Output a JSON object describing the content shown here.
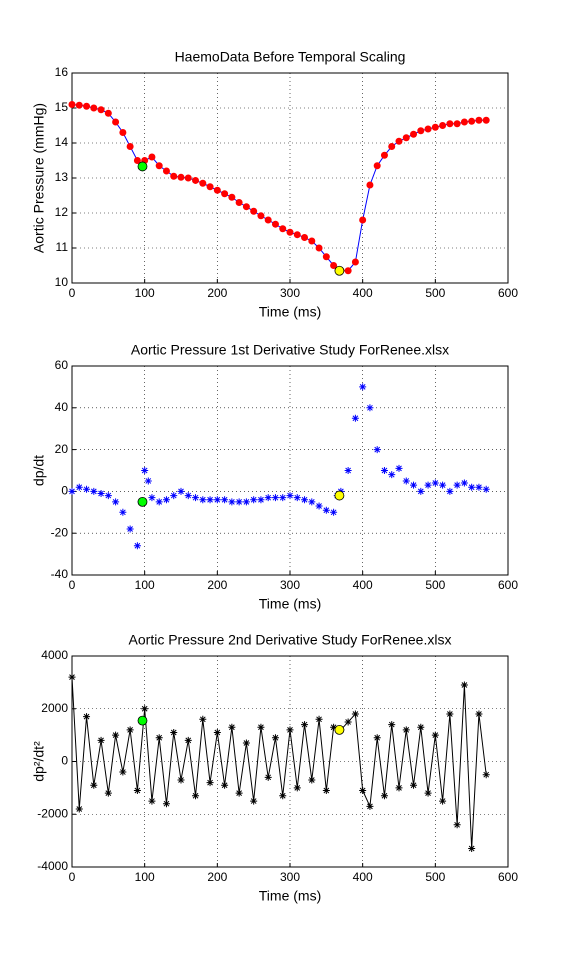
{
  "chart_data": [
    {
      "type": "line",
      "title": "HaemoData Before Temporal Scaling",
      "xlabel": "Time (ms)",
      "ylabel": "Aortic Pressure (mmHg)",
      "xlim": [
        0,
        600
      ],
      "xticks": [
        0,
        100,
        200,
        300,
        400,
        500,
        600
      ],
      "ylim": [
        10,
        16
      ],
      "yticks": [
        10,
        11,
        12,
        13,
        14,
        15,
        16
      ],
      "grid": true,
      "x": [
        0,
        10,
        20,
        30,
        40,
        50,
        60,
        70,
        80,
        90,
        97,
        100,
        110,
        120,
        130,
        140,
        150,
        160,
        170,
        180,
        190,
        200,
        210,
        220,
        230,
        240,
        250,
        260,
        270,
        280,
        290,
        300,
        310,
        320,
        330,
        340,
        350,
        360,
        370,
        380,
        390,
        400,
        410,
        420,
        430,
        440,
        450,
        460,
        470,
        480,
        490,
        500,
        510,
        520,
        530,
        540,
        550,
        560,
        570
      ],
      "series": [
        {
          "color": "#0000ff",
          "marker_color": "#ff0000",
          "marker": "o",
          "line": true,
          "values": [
            15.1,
            15.08,
            15.05,
            15.0,
            14.95,
            14.85,
            14.6,
            14.3,
            13.9,
            13.5,
            13.33,
            13.5,
            13.6,
            13.35,
            13.2,
            13.05,
            13.02,
            13.0,
            12.93,
            12.85,
            12.75,
            12.65,
            12.55,
            12.45,
            12.3,
            12.18,
            12.05,
            11.92,
            11.8,
            11.68,
            11.55,
            11.45,
            11.38,
            11.3,
            11.2,
            11.0,
            10.75,
            10.5,
            10.35,
            10.35,
            10.6,
            11.8,
            12.8,
            13.35,
            13.65,
            13.9,
            14.05,
            14.15,
            14.25,
            14.35,
            14.4,
            14.45,
            14.5,
            14.55,
            14.55,
            14.6,
            14.62,
            14.65,
            14.65
          ]
        }
      ],
      "points": [
        {
          "x": 97,
          "y": 13.33,
          "color": "#00ff00"
        },
        {
          "x": 368,
          "y": 10.35,
          "color": "#ffff00"
        }
      ]
    },
    {
      "type": "scatter",
      "title": "Aortic Pressure 1st Derivative Study ForRenee.xlsx",
      "xlabel": "Time (ms)",
      "ylabel": "dp/dt",
      "xlim": [
        0,
        600
      ],
      "xticks": [
        0,
        100,
        200,
        300,
        400,
        500,
        600
      ],
      "ylim": [
        -40,
        60
      ],
      "yticks": [
        -40,
        -20,
        0,
        20,
        40,
        60
      ],
      "grid": true,
      "x": [
        0,
        10,
        20,
        30,
        40,
        50,
        60,
        70,
        80,
        90,
        95,
        100,
        105,
        110,
        120,
        130,
        140,
        150,
        160,
        170,
        180,
        190,
        200,
        210,
        220,
        230,
        240,
        250,
        260,
        270,
        280,
        290,
        300,
        310,
        320,
        330,
        340,
        350,
        360,
        365,
        370,
        380,
        390,
        400,
        410,
        420,
        430,
        440,
        450,
        460,
        470,
        480,
        490,
        500,
        510,
        520,
        530,
        540,
        550,
        560,
        570
      ],
      "series": [
        {
          "color": "#0000ff",
          "marker_color": "#0000ff",
          "marker": "*",
          "line": false,
          "values": [
            0,
            2,
            1,
            0,
            -1,
            -2,
            -5,
            -10,
            -18,
            -26,
            -5,
            10,
            5,
            -3,
            -5,
            -4,
            -2,
            0,
            -2,
            -3,
            -4,
            -4,
            -4,
            -4,
            -5,
            -5,
            -5,
            -4,
            -4,
            -3,
            -3,
            -3,
            -2,
            -3,
            -4,
            -5,
            -7,
            -9,
            -10,
            -2,
            0,
            10,
            35,
            50,
            40,
            20,
            10,
            8,
            11,
            5,
            3,
            0,
            3,
            4,
            3,
            0,
            3,
            4,
            2,
            2,
            1
          ]
        }
      ],
      "points": [
        {
          "x": 97,
          "y": -5,
          "color": "#00ff00"
        },
        {
          "x": 368,
          "y": -2,
          "color": "#ffff00"
        }
      ]
    },
    {
      "type": "line",
      "title": "Aortic Pressure 2nd Derivative Study ForRenee.xlsx",
      "xlabel": "Time (ms)",
      "ylabel": "dp²/dt²",
      "xlim": [
        0,
        600
      ],
      "xticks": [
        0,
        100,
        200,
        300,
        400,
        500,
        600
      ],
      "ylim": [
        -4000,
        4000
      ],
      "yticks": [
        -4000,
        -2000,
        0,
        2000,
        4000
      ],
      "grid": true,
      "x": [
        0,
        10,
        20,
        30,
        40,
        50,
        60,
        70,
        80,
        90,
        100,
        110,
        120,
        130,
        140,
        150,
        160,
        170,
        180,
        190,
        200,
        210,
        220,
        230,
        240,
        250,
        260,
        270,
        280,
        290,
        300,
        310,
        320,
        330,
        340,
        350,
        360,
        370,
        380,
        390,
        400,
        410,
        420,
        430,
        440,
        450,
        460,
        470,
        480,
        490,
        500,
        510,
        520,
        530,
        540,
        550,
        560,
        570
      ],
      "series": [
        {
          "color": "#000000",
          "marker_color": "#000000",
          "marker": "*",
          "line": true,
          "values": [
            3200,
            -1800,
            1700,
            -900,
            800,
            -1200,
            1000,
            -400,
            1200,
            -1100,
            2000,
            -1500,
            900,
            -1600,
            1100,
            -700,
            800,
            -1300,
            1600,
            -800,
            1100,
            -900,
            1300,
            -1200,
            700,
            -1500,
            1300,
            -600,
            900,
            -1300,
            1200,
            -1000,
            1400,
            -700,
            1600,
            -1100,
            1300,
            1200,
            1500,
            1800,
            -1100,
            -1700,
            900,
            -1300,
            1400,
            -1000,
            1200,
            -900,
            1300,
            -1200,
            1000,
            -1500,
            1800,
            -2400,
            2900,
            -3300,
            1800,
            -500
          ]
        }
      ],
      "points": [
        {
          "x": 97,
          "y": 1550,
          "color": "#00ff00"
        },
        {
          "x": 368,
          "y": 1200,
          "color": "#ffff00"
        }
      ]
    }
  ]
}
